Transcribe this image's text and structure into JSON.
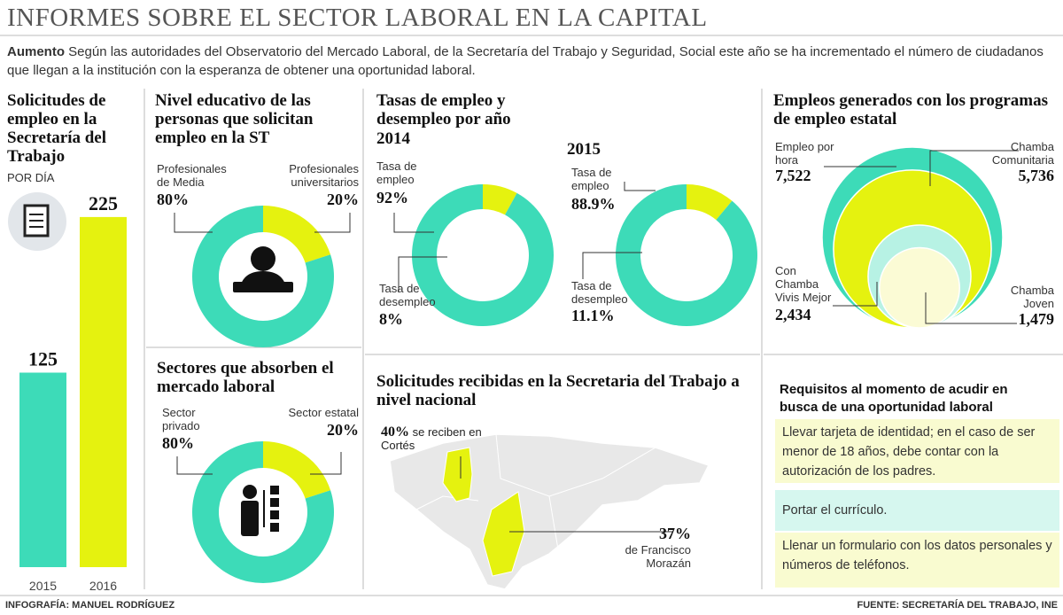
{
  "header": {
    "title": "INFORMES SOBRE EL SECTOR LABORAL EN LA CAPITAL",
    "lead_label": "Aumento",
    "lead_text": "Según las autoridades del Observatorio del Mercado Laboral, de la Secretaría del Trabajo y Seguridad, Social este año se ha incrementado el número de ciudadanos que llegan a la institución con la esperanza de obtener una oportunidad laboral."
  },
  "chart_data": [
    {
      "type": "bar",
      "title": "Solicitudes de empleo en la Secretaría del Trabajo",
      "subtitle": "POR DÍA",
      "categories": [
        "2015",
        "2016"
      ],
      "values": [
        125,
        225
      ],
      "colors": [
        "#3ddbb8",
        "#e5f20f"
      ],
      "ylim": [
        0,
        250
      ]
    },
    {
      "type": "donut",
      "title": "Nivel educativo de las personas que solicitan empleo en la ST",
      "categories": [
        "Profesionales de Media",
        "Profesionales universitarios"
      ],
      "values": [
        80,
        20
      ],
      "value_labels": [
        "80%",
        "20%"
      ],
      "colors": [
        "#3ddbb8",
        "#e5f20f"
      ]
    },
    {
      "type": "donut",
      "title": "Sectores que absorben el mercado laboral",
      "categories": [
        "Sector privado",
        "Sector estatal"
      ],
      "values": [
        80,
        20
      ],
      "value_labels": [
        "80%",
        "20%"
      ],
      "colors": [
        "#3ddbb8",
        "#e5f20f"
      ]
    },
    {
      "type": "donut",
      "title": "Tasas de empleo y desempleo por año",
      "subtitle": "2014",
      "categories": [
        "Tasa de empleo",
        "Tasa de desempleo"
      ],
      "values": [
        92,
        8
      ],
      "value_labels": [
        "92%",
        "8%"
      ],
      "colors": [
        "#3ddbb8",
        "#e5f20f"
      ]
    },
    {
      "type": "donut",
      "subtitle": "2015",
      "categories": [
        "Tasa de empleo",
        "Tasa de desempleo"
      ],
      "values": [
        88.9,
        11.1
      ],
      "value_labels": [
        "88.9%",
        "11.1%"
      ],
      "colors": [
        "#3ddbb8",
        "#e5f20f"
      ]
    },
    {
      "type": "bubble",
      "title": "Empleos generados con los programas de empleo estatal",
      "categories": [
        "Empleo por hora",
        "Chamba Comunitaria",
        "Con Chamba Vivis Mejor",
        "Chamba Joven"
      ],
      "values": [
        7522,
        5736,
        2434,
        1479
      ],
      "value_labels": [
        "7,522",
        "5,736",
        "2,434",
        "1,479"
      ],
      "colors": [
        "#3ddbb8",
        "#e5f20f",
        "#b7f2e4",
        "#fbfbd5"
      ]
    },
    {
      "type": "map",
      "title": "Solicitudes recibidas en la Secretaria del Trabajo a nivel nacional",
      "categories": [
        "se reciben en Cortés",
        "de Francisco Morazán"
      ],
      "values": [
        40,
        37
      ],
      "value_labels": [
        "40%",
        "37%"
      ],
      "color": "#e5f20f"
    }
  ],
  "requirements": {
    "title": "Requisitos al momento de acudir en busca de una oportunidad laboral",
    "items": [
      "Llevar tarjeta de identidad; en el caso de ser menor de 18 años, debe contar con la autorización de los padres.",
      "Portar el currículo.",
      "Llenar un formulario con los datos personales y números de teléfonos."
    ]
  },
  "footer": {
    "credit": "INFOGRAFÍA: MANUEL RODRÍGUEZ",
    "source": "FUENTE: SECRETARÍA DEL TRABAJO, INE"
  }
}
